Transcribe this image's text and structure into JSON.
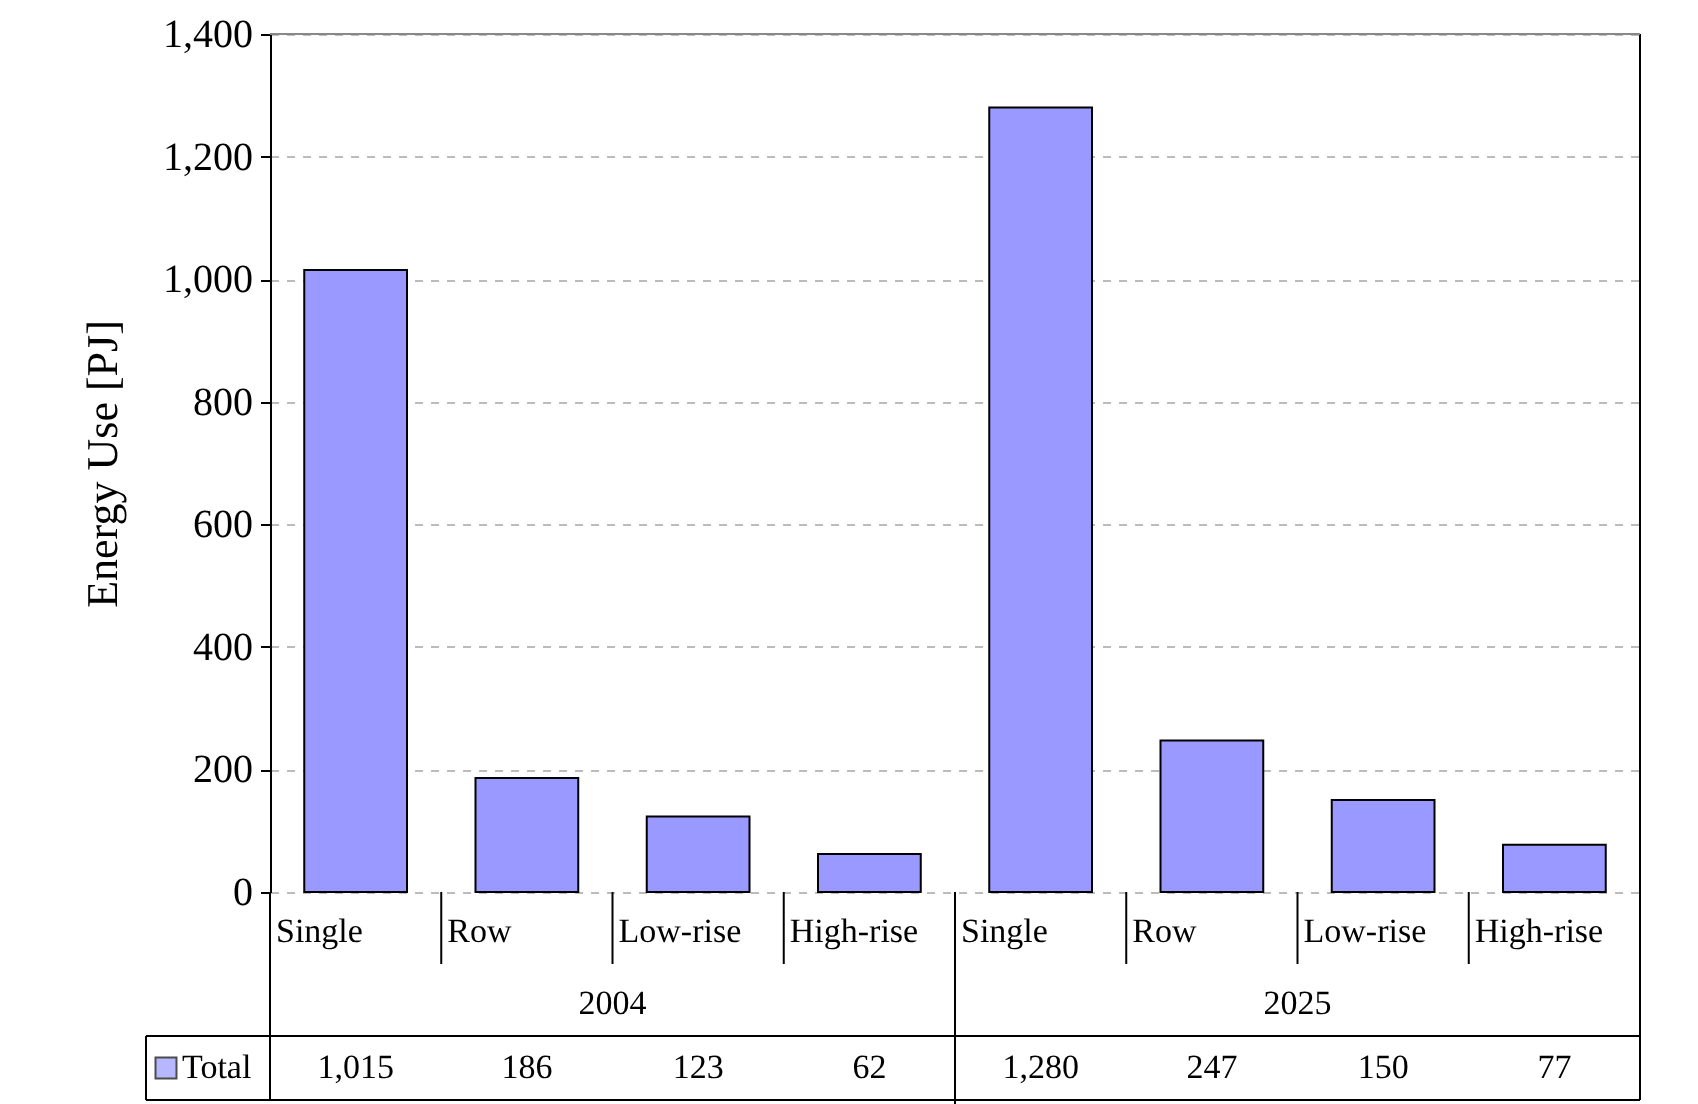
{
  "chart_data": {
    "type": "bar",
    "ylabel": "Energy Use [PJ]",
    "categories": [
      "Single",
      "Row",
      "Low-rise",
      "High-rise",
      "Single",
      "Row",
      "Low-rise",
      "High-rise"
    ],
    "annotations": [
      "2004",
      "2025"
    ],
    "series": [
      {
        "name": "Total",
        "color": "#9999ff",
        "values": [
          1015,
          186,
          123,
          62,
          1280,
          247,
          150,
          77
        ],
        "value_labels": [
          "1,015",
          "186",
          "123",
          "62",
          "1,280",
          "247",
          "150",
          "77"
        ]
      }
    ],
    "ylim": [
      0,
      1400
    ],
    "yticks": [
      0,
      200,
      400,
      600,
      800,
      {
        "value": 1000,
        "label": "1,000"
      },
      {
        "value": 1200,
        "label": "1,200"
      },
      {
        "value": 1400,
        "label": "1,400"
      }
    ],
    "grid": "y",
    "legend": "bottom"
  }
}
